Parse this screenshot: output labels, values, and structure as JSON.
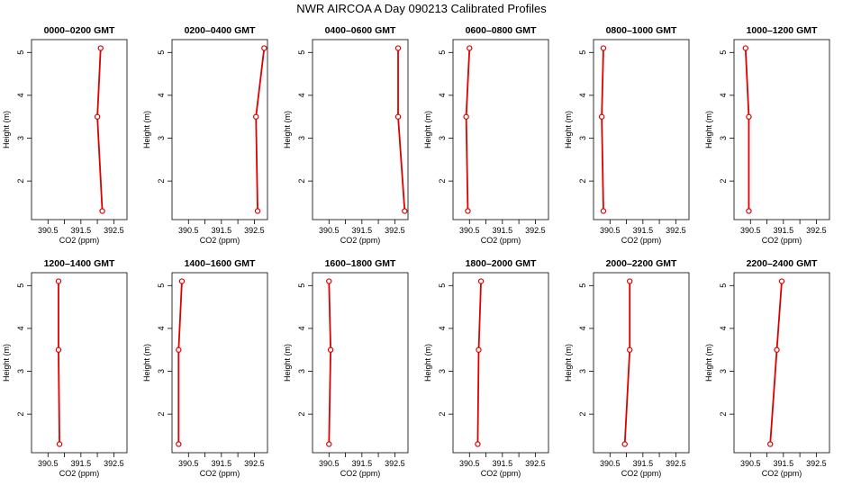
{
  "chart_data": {
    "type": "line",
    "title": "NWR AIRCOA A  Day 090213  Calibrated Profiles",
    "xlabel": "CO2 (ppm)",
    "ylabel": "Height (m)",
    "xlim": [
      390.0,
      392.9
    ],
    "ylim": [
      1.1,
      5.3
    ],
    "x_ticks": [
      "390.5",
      "391.5",
      "392.5"
    ],
    "x_tick_values": [
      390.5,
      391.5,
      392.5
    ],
    "x_minor_ticks": [
      391.0,
      392.0
    ],
    "y_ticks": [
      "2",
      "3",
      "4",
      "5"
    ],
    "y_tick_values": [
      2,
      3,
      4,
      5
    ],
    "grid": false,
    "heights": [
      1.3,
      3.5,
      5.1
    ],
    "line_color": "#dd0000",
    "panels": [
      {
        "title": "0000–0200 GMT",
        "x": [
          392.15,
          392.0,
          392.1
        ]
      },
      {
        "title": "0200–0400 GMT",
        "x": [
          392.6,
          392.55,
          392.8
        ]
      },
      {
        "title": "0400–0600 GMT",
        "x": [
          392.8,
          392.6,
          392.6
        ]
      },
      {
        "title": "0600–0800 GMT",
        "x": [
          390.45,
          390.4,
          390.5
        ]
      },
      {
        "title": "0800–1000 GMT",
        "x": [
          390.3,
          390.25,
          390.3
        ]
      },
      {
        "title": "1000–1200 GMT",
        "x": [
          390.45,
          390.45,
          390.35
        ]
      },
      {
        "title": "1200–1400 GMT",
        "x": [
          390.85,
          390.82,
          390.82
        ]
      },
      {
        "title": "1400–1600 GMT",
        "x": [
          390.2,
          390.2,
          390.3
        ]
      },
      {
        "title": "1600–1800 GMT",
        "x": [
          390.5,
          390.55,
          390.5
        ]
      },
      {
        "title": "1800–2000 GMT",
        "x": [
          390.75,
          390.78,
          390.85
        ]
      },
      {
        "title": "2000–2200 GMT",
        "x": [
          390.95,
          391.1,
          391.1
        ]
      },
      {
        "title": "2200–2400 GMT",
        "x": [
          391.1,
          391.3,
          391.45
        ]
      }
    ]
  }
}
